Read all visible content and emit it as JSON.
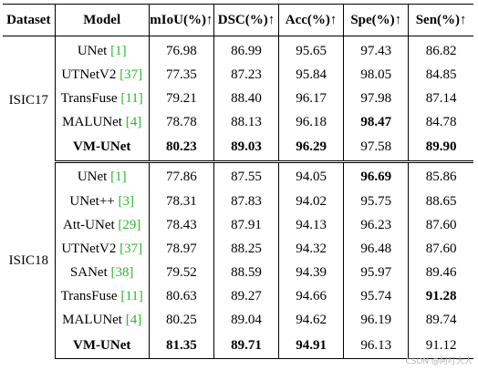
{
  "table": {
    "headers": {
      "dataset": "Dataset",
      "model": "Model",
      "miou": "mIoU(%)↑",
      "dsc": "DSC(%)↑",
      "acc": "Acc(%)↑",
      "spe": "Spe(%)↑",
      "sen": "Sen(%)↑"
    },
    "groups": [
      {
        "dataset": "ISIC17",
        "rows": [
          {
            "model": "UNet",
            "ref": "[1]",
            "model_bold": false,
            "miou": "76.98",
            "dsc": "86.99",
            "acc": "95.65",
            "spe": "97.43",
            "sen": "86.82",
            "bold": []
          },
          {
            "model": "UTNetV2",
            "ref": "[37]",
            "model_bold": false,
            "miou": "77.35",
            "dsc": "87.23",
            "acc": "95.84",
            "spe": "98.05",
            "sen": "84.85",
            "bold": []
          },
          {
            "model": "TransFuse",
            "ref": "[11]",
            "model_bold": false,
            "miou": "79.21",
            "dsc": "88.40",
            "acc": "96.17",
            "spe": "97.98",
            "sen": "87.14",
            "bold": []
          },
          {
            "model": "MALUNet",
            "ref": "[4]",
            "model_bold": false,
            "miou": "78.78",
            "dsc": "88.13",
            "acc": "96.18",
            "spe": "98.47",
            "sen": "84.78",
            "bold": [
              "spe"
            ]
          },
          {
            "model": "VM-UNet",
            "ref": "",
            "model_bold": true,
            "miou": "80.23",
            "dsc": "89.03",
            "acc": "96.29",
            "spe": "97.58",
            "sen": "89.90",
            "bold": [
              "miou",
              "dsc",
              "acc",
              "sen"
            ]
          }
        ]
      },
      {
        "dataset": "ISIC18",
        "rows": [
          {
            "model": "UNet",
            "ref": "[1]",
            "model_bold": false,
            "miou": "77.86",
            "dsc": "87.55",
            "acc": "94.05",
            "spe": "96.69",
            "sen": "85.86",
            "bold": [
              "spe"
            ]
          },
          {
            "model": "UNet++",
            "ref": "[3]",
            "model_bold": false,
            "miou": "78.31",
            "dsc": "87.83",
            "acc": "94.02",
            "spe": "95.75",
            "sen": "88.65",
            "bold": []
          },
          {
            "model": "Att-UNet",
            "ref": "[29]",
            "model_bold": false,
            "miou": "78.43",
            "dsc": "87.91",
            "acc": "94.13",
            "spe": "96.23",
            "sen": "87.60",
            "bold": []
          },
          {
            "model": "UTNetV2",
            "ref": "[37]",
            "model_bold": false,
            "miou": "78.97",
            "dsc": "88.25",
            "acc": "94.32",
            "spe": "96.48",
            "sen": "87.60",
            "bold": []
          },
          {
            "model": "SANet",
            "ref": "[38]",
            "model_bold": false,
            "miou": "79.52",
            "dsc": "88.59",
            "acc": "94.39",
            "spe": "95.97",
            "sen": "89.46",
            "bold": []
          },
          {
            "model": "TransFuse",
            "ref": "[11]",
            "model_bold": false,
            "miou": "80.63",
            "dsc": "89.27",
            "acc": "94.66",
            "spe": "95.74",
            "sen": "91.28",
            "bold": [
              "sen"
            ]
          },
          {
            "model": "MALUNet",
            "ref": "[4]",
            "model_bold": false,
            "miou": "80.25",
            "dsc": "89.04",
            "acc": "94.62",
            "spe": "96.19",
            "sen": "89.74",
            "bold": []
          },
          {
            "model": "VM-UNet",
            "ref": "",
            "model_bold": true,
            "miou": "81.35",
            "dsc": "89.71",
            "acc": "94.91",
            "spe": "96.13",
            "sen": "91.12",
            "bold": [
              "miou",
              "dsc",
              "acc"
            ]
          }
        ]
      }
    ]
  },
  "watermark": "CSDN @阿叮大人"
}
